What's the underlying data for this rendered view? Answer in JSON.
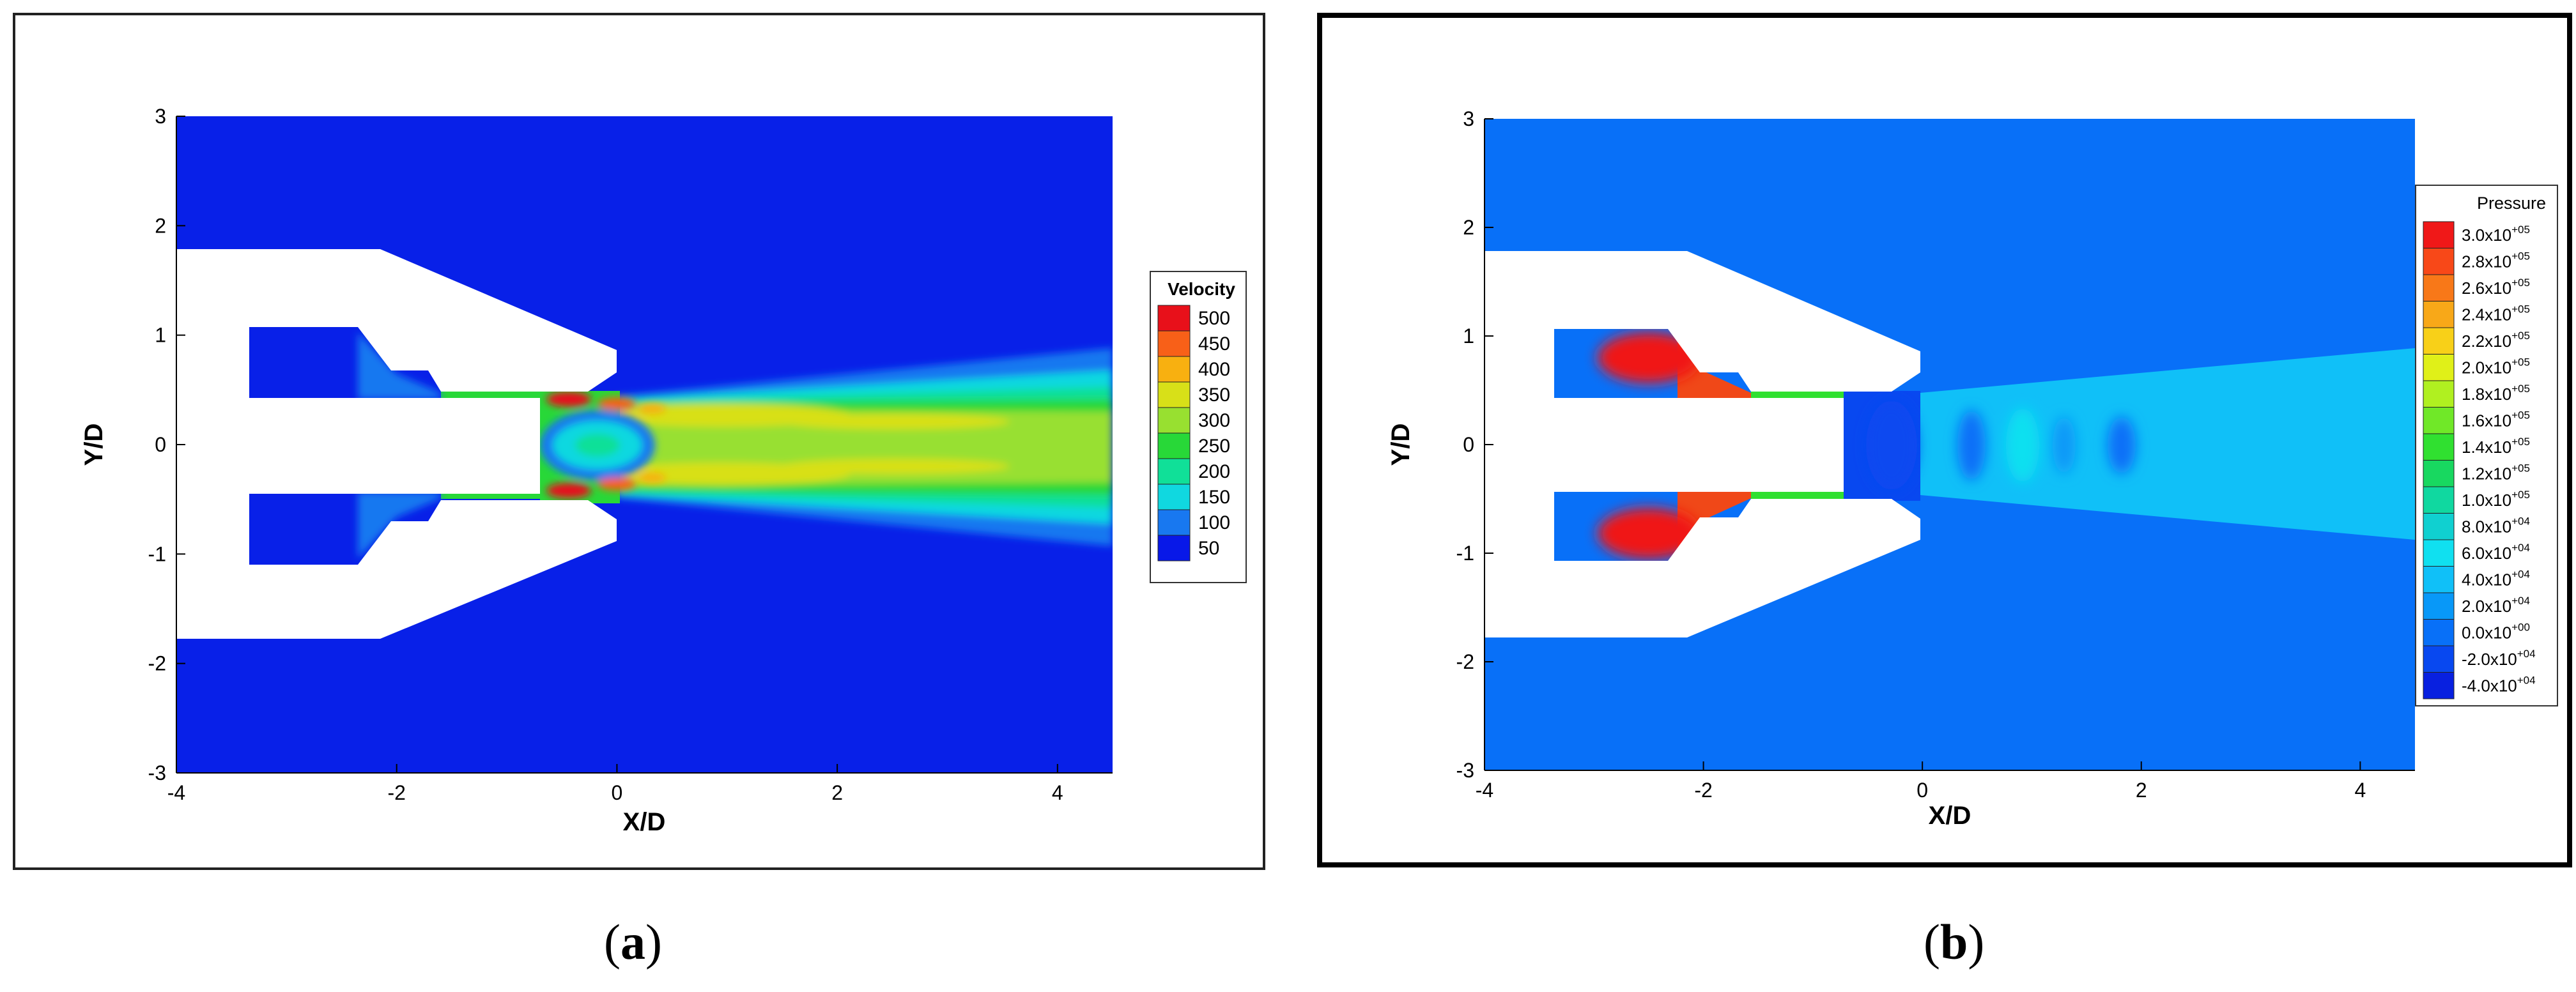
{
  "chart_data": [
    {
      "type": "heatmap",
      "panel_label": "a",
      "xlabel": "X/D",
      "ylabel": "Y/D",
      "xlim": [
        -4,
        4.5
      ],
      "ylim": [
        -3,
        3
      ],
      "x_ticks": [
        -4,
        -2,
        0,
        2,
        4
      ],
      "y_ticks": [
        -3,
        -2,
        -1,
        0,
        1,
        2,
        3
      ],
      "legend": {
        "title": "Velocity",
        "position": "right",
        "labels": [
          "500",
          "450",
          "400",
          "350",
          "300",
          "250",
          "200",
          "150",
          "100",
          "50"
        ],
        "colors": [
          "#e8101a",
          "#f86018",
          "#f8b010",
          "#d8e018",
          "#98e030",
          "#28d838",
          "#10e098",
          "#10d8e0",
          "#1878f0",
          "#0818e8"
        ]
      },
      "colors": {
        "background": "#0820e8",
        "jet_hot": "#e8101a",
        "jet_mid": "#98e030",
        "jet_warm": "#f8b010"
      }
    },
    {
      "type": "heatmap",
      "panel_label": "b",
      "xlabel": "X/D",
      "ylabel": "Y/D",
      "xlim": [
        -4,
        4.5
      ],
      "ylim": [
        -3,
        3
      ],
      "x_ticks": [
        -4,
        -2,
        0,
        2,
        4
      ],
      "y_ticks": [
        -3,
        -2,
        -1,
        0,
        1,
        2,
        3
      ],
      "legend": {
        "title": "Pressure",
        "position": "right",
        "labels": [
          {
            "m": "3.0",
            "e": "+05"
          },
          {
            "m": "2.8",
            "e": "+05"
          },
          {
            "m": "2.6",
            "e": "+05"
          },
          {
            "m": "2.4",
            "e": "+05"
          },
          {
            "m": "2.2",
            "e": "+05"
          },
          {
            "m": "2.0",
            "e": "+05"
          },
          {
            "m": "1.8",
            "e": "+05"
          },
          {
            "m": "1.6",
            "e": "+05"
          },
          {
            "m": "1.4",
            "e": "+05"
          },
          {
            "m": "1.2",
            "e": "+05"
          },
          {
            "m": "1.0",
            "e": "+05"
          },
          {
            "m": "8.0",
            "e": "+04"
          },
          {
            "m": "6.0",
            "e": "+04"
          },
          {
            "m": "4.0",
            "e": "+04"
          },
          {
            "m": "2.0",
            "e": "+04"
          },
          {
            "m": "0.0",
            "e": "+00"
          },
          {
            "m": "-2.0",
            "e": "+04"
          },
          {
            "m": "-4.0",
            "e": "+04"
          }
        ],
        "colors": [
          "#f01818",
          "#f84818",
          "#f87818",
          "#f8a818",
          "#f8d018",
          "#e0f018",
          "#b0f020",
          "#70e828",
          "#30e030",
          "#18d860",
          "#10d8a0",
          "#10d0d0",
          "#10e0f0",
          "#10c0f8",
          "#0898f8",
          "#0870f8",
          "#0848f0",
          "#0820e0"
        ]
      },
      "colors": {
        "background": "#0870f8",
        "chamber": "#f04818",
        "core": "#10e0f0",
        "plume": "#10c0f8"
      }
    }
  ]
}
